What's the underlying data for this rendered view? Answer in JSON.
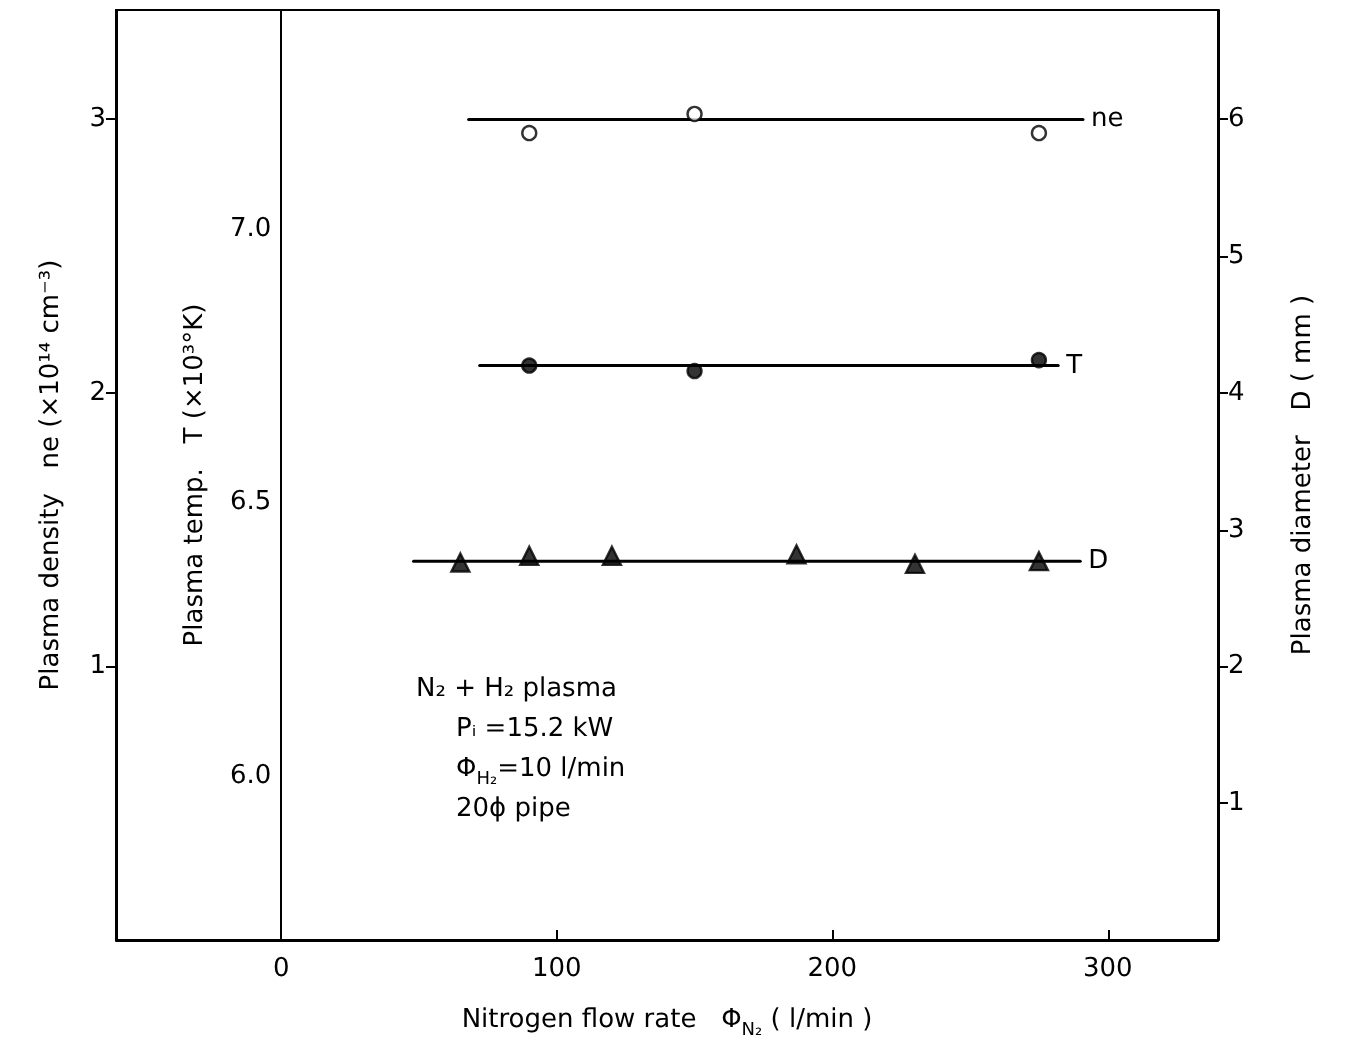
{
  "chart_data": {
    "type": "scatter",
    "xlabel": "Nitrogen flow rate   Φ$_{N₂}$ ( l/min )",
    "ylabel": "Plasma density   ne (×10¹⁴ cm⁻³)",
    "y2label": "Plasma temp.   T (×10³°K)",
    "y3label": "Plasma diameter   D ( mm )",
    "xlim": [
      -60,
      340
    ],
    "xticks": [
      0,
      100,
      200,
      300
    ],
    "ylim": [
      0,
      3.4
    ],
    "yticks": [
      1,
      2,
      3
    ],
    "y2lim": [
      5.7,
      7.4
    ],
    "y2ticks": [
      {
        "value": 6,
        "label": "6.0"
      },
      {
        "value": 6.5,
        "label": "6.5"
      },
      {
        "value": 7,
        "label": "7.0"
      }
    ],
    "y3lim": [
      0,
      6.8
    ],
    "y3ticks": [
      1,
      2,
      3,
      4,
      5,
      6
    ],
    "grid": false,
    "legend": false,
    "annotations": [
      "N₂ + H₂ plasma",
      "Pᵢ =15.2 kW",
      "Φ$_{H₂}$=10 l/min",
      "20ϕ pipe"
    ],
    "series": [
      {
        "axis": "y",
        "marker": "circle",
        "color": "#ffffff",
        "x": [
          90,
          150,
          275
        ],
        "values": [
          2.95,
          3.02,
          2.95
        ]
      },
      {
        "type": "line",
        "name": "ne",
        "axis": "y",
        "marker": "none",
        "line_style": "solid",
        "color": "#000000",
        "x": [
          68,
          291
        ],
        "values": [
          3.0,
          3.0
        ]
      },
      {
        "axis": "y2",
        "marker": "circle",
        "color": "#000000",
        "x": [
          90,
          150,
          275
        ],
        "values": [
          6.75,
          6.74,
          6.76
        ]
      },
      {
        "type": "line",
        "name": "T",
        "axis": "y2",
        "marker": "none",
        "line_style": "solid",
        "color": "#000000",
        "x": [
          72,
          282
        ],
        "values": [
          6.75,
          6.75
        ]
      },
      {
        "axis": "y3",
        "marker": "triangle",
        "color": "#000000",
        "x": [
          65,
          90,
          120,
          187,
          230,
          275
        ],
        "values": [
          2.76,
          2.81,
          2.81,
          2.82,
          2.75,
          2.77
        ]
      },
      {
        "type": "line",
        "name": "D",
        "axis": "y3",
        "marker": "none",
        "line_style": "solid",
        "color": "#000000",
        "x": [
          48,
          290
        ],
        "values": [
          2.77,
          2.77
        ]
      }
    ]
  }
}
